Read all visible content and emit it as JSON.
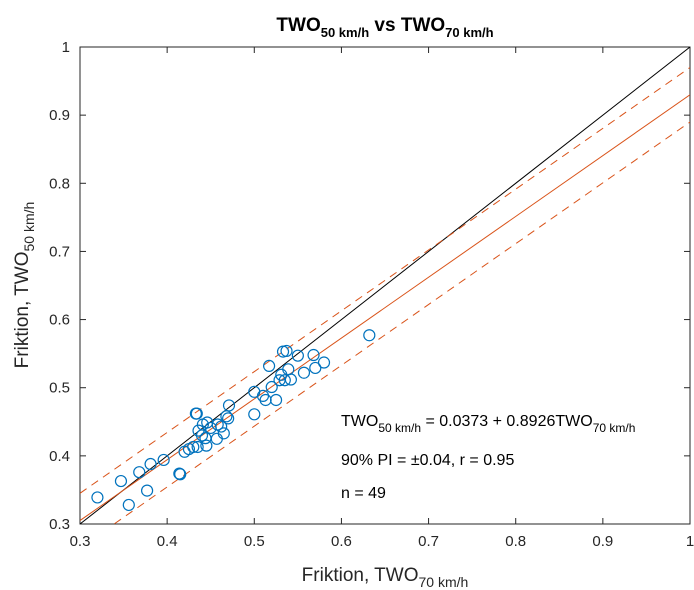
{
  "chart_data": {
    "type": "scatter",
    "title": {
      "base": "TWO",
      "sub1": "50 km/h",
      "mid": " vs TWO",
      "sub2": "70 km/h"
    },
    "xlabel": {
      "base": "Friktion, TWO",
      "sub": "70 km/h"
    },
    "ylabel": {
      "base": "Friktion, TWO",
      "sub": "50 km/h"
    },
    "xlim": [
      0.3,
      1
    ],
    "ylim": [
      0.3,
      1
    ],
    "xticks": [
      0.3,
      0.4,
      0.5,
      0.6,
      0.7,
      0.8,
      0.9,
      1
    ],
    "xtick_labels": [
      "0.3",
      "0.4",
      "0.5",
      "0.6",
      "0.7",
      "0.8",
      "0.9",
      "1"
    ],
    "yticks": [
      0.3,
      0.4,
      0.5,
      0.6,
      0.7,
      0.8,
      0.9,
      1
    ],
    "ytick_labels": [
      "0.3",
      "0.4",
      "0.5",
      "0.6",
      "0.7",
      "0.8",
      "0.9",
      "1"
    ],
    "grid": false,
    "lines": {
      "identity": {
        "x": [
          0.3,
          1
        ],
        "y": [
          0.3,
          1
        ]
      },
      "regression": {
        "intercept": 0.0373,
        "slope": 0.8926
      },
      "prediction_interval_halfwidth": 0.04
    },
    "colors": {
      "points": "#0072BD",
      "regression": "#D95319",
      "identity": "#000000"
    },
    "annotations": {
      "equation": {
        "part1": "TWO",
        "sub1": "50 km/h",
        "part2": " = 0.0373 + 0.8926TWO",
        "sub2": "70 km/h"
      },
      "pi": "90% PI = ±0.04, r = 0.95",
      "n": "n = 49"
    },
    "points": [
      [
        0.32,
        0.339
      ],
      [
        0.347,
        0.363
      ],
      [
        0.356,
        0.328
      ],
      [
        0.368,
        0.376
      ],
      [
        0.377,
        0.349
      ],
      [
        0.381,
        0.388
      ],
      [
        0.396,
        0.394
      ],
      [
        0.414,
        0.374
      ],
      [
        0.415,
        0.373
      ],
      [
        0.42,
        0.406
      ],
      [
        0.425,
        0.41
      ],
      [
        0.43,
        0.413
      ],
      [
        0.433,
        0.462
      ],
      [
        0.434,
        0.462
      ],
      [
        0.435,
        0.413
      ],
      [
        0.436,
        0.437
      ],
      [
        0.44,
        0.43
      ],
      [
        0.441,
        0.446
      ],
      [
        0.444,
        0.426
      ],
      [
        0.445,
        0.415
      ],
      [
        0.446,
        0.449
      ],
      [
        0.45,
        0.441
      ],
      [
        0.457,
        0.425
      ],
      [
        0.458,
        0.446
      ],
      [
        0.462,
        0.443
      ],
      [
        0.465,
        0.433
      ],
      [
        0.468,
        0.458
      ],
      [
        0.47,
        0.455
      ],
      [
        0.471,
        0.474
      ],
      [
        0.5,
        0.461
      ],
      [
        0.5,
        0.494
      ],
      [
        0.51,
        0.488
      ],
      [
        0.513,
        0.482
      ],
      [
        0.517,
        0.532
      ],
      [
        0.52,
        0.501
      ],
      [
        0.525,
        0.482
      ],
      [
        0.529,
        0.511
      ],
      [
        0.531,
        0.519
      ],
      [
        0.533,
        0.553
      ],
      [
        0.535,
        0.511
      ],
      [
        0.537,
        0.554
      ],
      [
        0.539,
        0.527
      ],
      [
        0.542,
        0.512
      ],
      [
        0.55,
        0.547
      ],
      [
        0.557,
        0.522
      ],
      [
        0.568,
        0.548
      ],
      [
        0.57,
        0.529
      ],
      [
        0.58,
        0.537
      ],
      [
        0.632,
        0.577
      ]
    ]
  }
}
